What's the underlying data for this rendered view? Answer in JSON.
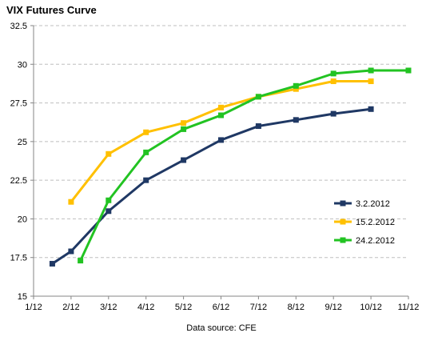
{
  "chart_data": {
    "type": "line",
    "title": "VIX Futures Curve",
    "footer": "Data source: CFE",
    "x_categories": [
      "1/12",
      "2/12",
      "3/12",
      "4/12",
      "5/12",
      "6/12",
      "7/12",
      "8/12",
      "9/12",
      "10/12",
      "11/12"
    ],
    "xlim": [
      0,
      10
    ],
    "ylim": [
      15,
      32.5
    ],
    "y_ticks": [
      "15",
      "17.5",
      "20",
      "22.5",
      "25",
      "27.5",
      "30",
      "32.5"
    ],
    "y_tick_values": [
      15,
      17.5,
      20,
      22.5,
      25,
      27.5,
      30,
      32.5
    ],
    "grid": true,
    "legend_position": "right",
    "series": [
      {
        "name": "3.2.2012",
        "color": "#1f3864",
        "points": [
          {
            "x": 0.5,
            "y": 17.1
          },
          {
            "x": 1.0,
            "y": 17.9
          },
          {
            "x": 2.0,
            "y": 20.5
          },
          {
            "x": 3.0,
            "y": 22.5
          },
          {
            "x": 4.0,
            "y": 23.8
          },
          {
            "x": 5.0,
            "y": 25.1
          },
          {
            "x": 6.0,
            "y": 26.0
          },
          {
            "x": 7.0,
            "y": 26.4
          },
          {
            "x": 8.0,
            "y": 26.8
          },
          {
            "x": 9.0,
            "y": 27.1
          }
        ]
      },
      {
        "name": "15.2.2012",
        "color": "#ffc000",
        "points": [
          {
            "x": 1.0,
            "y": 21.1
          },
          {
            "x": 2.0,
            "y": 24.2
          },
          {
            "x": 3.0,
            "y": 25.6
          },
          {
            "x": 4.0,
            "y": 26.2
          },
          {
            "x": 5.0,
            "y": 27.2
          },
          {
            "x": 6.0,
            "y": 27.9
          },
          {
            "x": 7.0,
            "y": 28.4
          },
          {
            "x": 8.0,
            "y": 28.9
          },
          {
            "x": 9.0,
            "y": 28.9
          }
        ]
      },
      {
        "name": "24.2.2012",
        "color": "#22c322",
        "points": [
          {
            "x": 1.25,
            "y": 17.3
          },
          {
            "x": 2.0,
            "y": 21.2
          },
          {
            "x": 3.0,
            "y": 24.3
          },
          {
            "x": 4.0,
            "y": 25.8
          },
          {
            "x": 5.0,
            "y": 26.7
          },
          {
            "x": 6.0,
            "y": 27.9
          },
          {
            "x": 7.0,
            "y": 28.6
          },
          {
            "x": 8.0,
            "y": 29.4
          },
          {
            "x": 9.0,
            "y": 29.6
          },
          {
            "x": 10.0,
            "y": 29.6
          }
        ]
      }
    ]
  }
}
